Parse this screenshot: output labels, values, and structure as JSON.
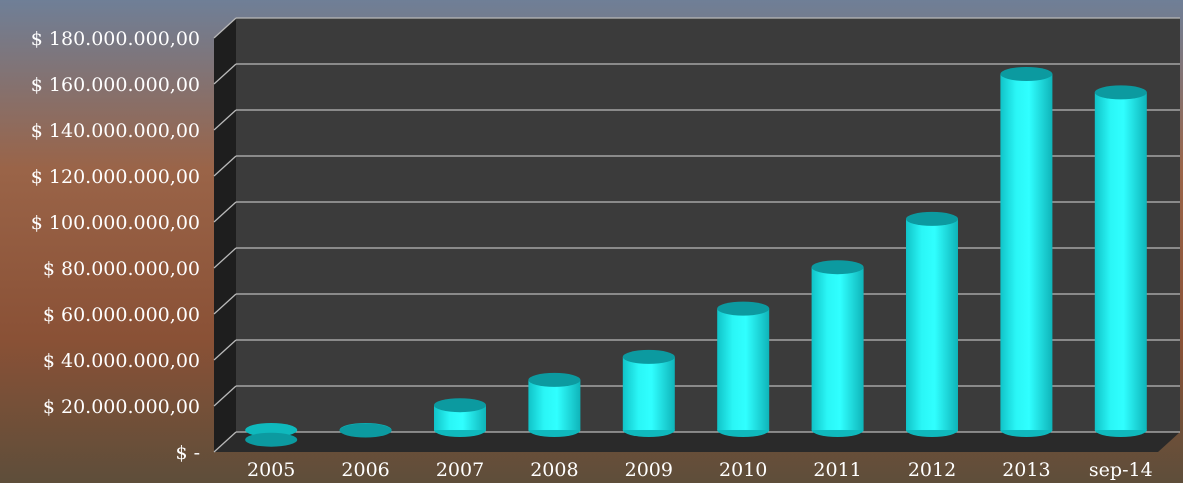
{
  "chart_data": {
    "type": "bar",
    "style": "3d-cylinder",
    "categories": [
      "2005",
      "2006",
      "2007",
      "2008",
      "2009",
      "2010",
      "2011",
      "2012",
      "2013",
      "sep-14"
    ],
    "series": [
      {
        "values": [
          1000000,
          5000000,
          16000000,
          27000000,
          37000000,
          58000000,
          76000000,
          97000000,
          160000000,
          152000000
        ]
      }
    ],
    "ylim": [
      0,
      180000000
    ],
    "y_ticks": [
      {
        "value": 0,
        "label": "$ -"
      },
      {
        "value": 20000000,
        "label": "$ 20.000.000,00"
      },
      {
        "value": 40000000,
        "label": "$ 40.000.000,00"
      },
      {
        "value": 60000000,
        "label": "$ 60.000.000,00"
      },
      {
        "value": 80000000,
        "label": "$ 80.000.000,00"
      },
      {
        "value": 100000000,
        "label": "$ 100.000.000,00"
      },
      {
        "value": 120000000,
        "label": "$ 120.000.000,00"
      },
      {
        "value": 140000000,
        "label": "$ 140.000.000,00"
      },
      {
        "value": 160000000,
        "label": "$ 160.000.000,00"
      },
      {
        "value": 180000000,
        "label": "$ 180.000.000,00"
      }
    ],
    "grid": true,
    "legend": "none",
    "colors": {
      "bar": "#22f0f0",
      "bar_shade": "#0fb9bd",
      "bar_top": "#0c9aa0",
      "wall": "#3b3b3b",
      "grid": "#b9b9b9",
      "text": "#ffffff",
      "background": "#8a5a40"
    }
  }
}
